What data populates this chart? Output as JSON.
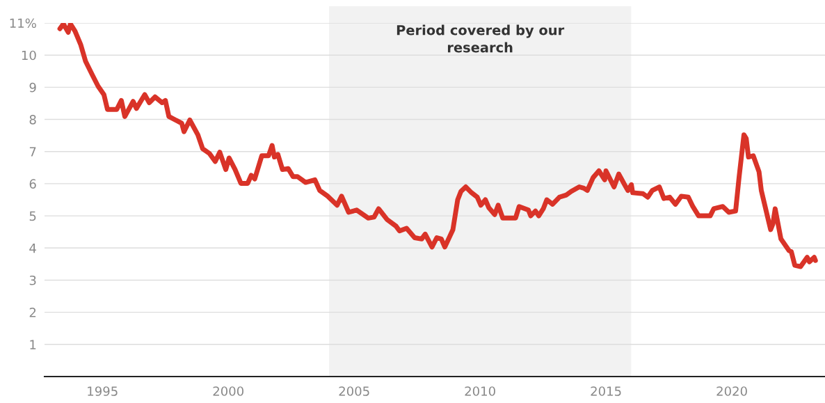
{
  "chart_data": {
    "type": "line",
    "x": [
      1993.31,
      1993.45,
      1993.64,
      1993.73,
      1993.91,
      1994.14,
      1994.33,
      1994.6,
      1994.83,
      1995.06,
      1995.2,
      1995.57,
      1995.75,
      1995.89,
      1996.22,
      1996.35,
      1996.68,
      1996.86,
      1997.09,
      1997.37,
      1997.5,
      1997.64,
      1998.15,
      1998.24,
      1998.47,
      1998.79,
      1998.98,
      1999.25,
      1999.48,
      1999.66,
      1999.9,
      2000.03,
      2000.27,
      2000.5,
      2000.77,
      2000.91,
      2001.05,
      2001.33,
      2001.6,
      2001.74,
      2001.83,
      2001.97,
      2002.15,
      2002.38,
      2002.57,
      2002.75,
      2003.07,
      2003.44,
      2003.63,
      2003.95,
      2004.32,
      2004.5,
      2004.78,
      2005.1,
      2005.56,
      2005.79,
      2005.97,
      2006.3,
      2006.66,
      2006.8,
      2007.08,
      2007.4,
      2007.68,
      2007.82,
      2008.09,
      2008.28,
      2008.46,
      2008.6,
      2008.92,
      2009.11,
      2009.24,
      2009.43,
      2009.66,
      2009.89,
      2010.03,
      2010.21,
      2010.35,
      2010.58,
      2010.72,
      2010.9,
      2011.41,
      2011.55,
      2011.92,
      2012.01,
      2012.2,
      2012.33,
      2012.51,
      2012.65,
      2012.88,
      2013.15,
      2013.43,
      2013.62,
      2013.94,
      2014.12,
      2014.26,
      2014.49,
      2014.72,
      2014.95,
      2015.0,
      2015.32,
      2015.51,
      2015.74,
      2015.87,
      2016.01,
      2016.06,
      2016.47,
      2016.66,
      2016.84,
      2017.12,
      2017.3,
      2017.53,
      2017.76,
      2017.99,
      2018.27,
      2018.45,
      2018.68,
      2019.14,
      2019.28,
      2019.64,
      2019.88,
      2020.15,
      2020.29,
      2020.48,
      2020.57,
      2020.66,
      2020.85,
      2021.08,
      2021.17,
      2021.54,
      2021.63,
      2021.72,
      2021.95,
      2022.27,
      2022.36,
      2022.5,
      2022.73,
      2022.99,
      2023.08,
      2023.27,
      2023.32
    ],
    "series": [
      {
        "color": "#d93328",
        "values": [
          10.82,
          10.97,
          10.71,
          10.97,
          10.75,
          10.32,
          9.81,
          9.38,
          9.03,
          8.77,
          8.31,
          8.31,
          8.59,
          8.09,
          8.56,
          8.34,
          8.77,
          8.52,
          8.7,
          8.52,
          8.59,
          8.09,
          7.88,
          7.62,
          7.98,
          7.52,
          7.09,
          6.94,
          6.69,
          6.98,
          6.44,
          6.8,
          6.44,
          6.01,
          6.01,
          6.26,
          6.15,
          6.87,
          6.87,
          7.19,
          6.83,
          6.91,
          6.44,
          6.47,
          6.22,
          6.22,
          6.04,
          6.12,
          5.79,
          5.61,
          5.33,
          5.61,
          5.11,
          5.18,
          4.93,
          4.96,
          5.22,
          4.89,
          4.68,
          4.53,
          4.61,
          4.32,
          4.28,
          4.43,
          4.03,
          4.32,
          4.28,
          4.03,
          4.57,
          5.5,
          5.76,
          5.9,
          5.72,
          5.58,
          5.33,
          5.5,
          5.25,
          5.04,
          5.33,
          4.93,
          4.93,
          5.29,
          5.18,
          5.0,
          5.15,
          5.0,
          5.22,
          5.5,
          5.36,
          5.58,
          5.65,
          5.76,
          5.9,
          5.86,
          5.79,
          6.19,
          6.4,
          6.12,
          6.4,
          5.9,
          6.3,
          5.97,
          5.79,
          5.97,
          5.72,
          5.69,
          5.58,
          5.79,
          5.9,
          5.54,
          5.58,
          5.36,
          5.61,
          5.58,
          5.29,
          5.0,
          5.0,
          5.22,
          5.29,
          5.11,
          5.15,
          6.22,
          7.52,
          7.41,
          6.83,
          6.87,
          6.37,
          5.79,
          4.57,
          4.75,
          5.22,
          4.28,
          3.92,
          3.89,
          3.46,
          3.42,
          3.71,
          3.57,
          3.71,
          3.61
        ]
      }
    ],
    "xlim": [
      1992.7,
      2023.7
    ],
    "xticks": [
      1995,
      2000,
      2005,
      2010,
      2015,
      2020
    ],
    "ylim": [
      0,
      11
    ],
    "yticks": [
      1,
      2,
      3,
      4,
      5,
      6,
      7,
      8,
      9,
      10,
      {
        "value": 11,
        "label": "11%"
      }
    ],
    "grid": "y",
    "bands": [
      {
        "axis": "x",
        "from": 2004,
        "to": 2016,
        "label": "Period covered by our\nresearch",
        "color": "#f2f2f2"
      }
    ]
  }
}
